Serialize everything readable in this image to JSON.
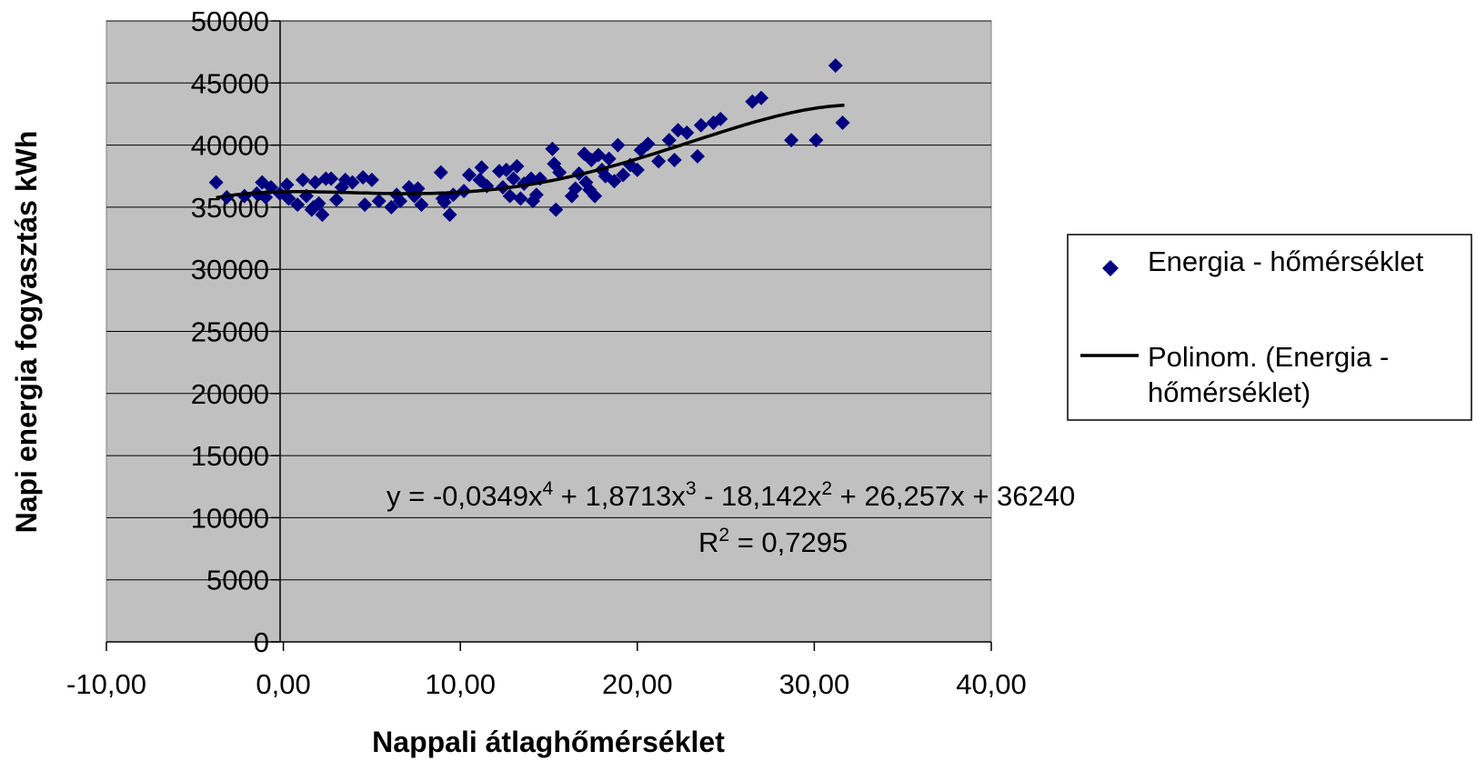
{
  "chart_data": {
    "type": "scatter",
    "xlabel": "Nappali átlaghőmérséklet",
    "ylabel": "Napi energia fogyasztás kWh",
    "xlim": [
      -10,
      40
    ],
    "ylim": [
      0,
      50000
    ],
    "x_ticks": [
      "-10,00",
      "0,00",
      "10,00",
      "20,00",
      "30,00",
      "40,00"
    ],
    "y_ticks": [
      "0",
      "5000",
      "10000",
      "15000",
      "20000",
      "25000",
      "30000",
      "35000",
      "40000",
      "45000",
      "50000"
    ],
    "grid": "horizontal",
    "legend_position": "right",
    "colors": {
      "plot_background": "#c0c0c0",
      "marker": "#000080",
      "trendline": "#000000"
    },
    "trendline": {
      "name": "Polinom. (Energia - hőmérséklet)",
      "equation_prefix": "y = -0,0349x",
      "equation_parts": [
        "4",
        " + 1,8713x",
        "3",
        " - 18,142x",
        "2",
        " + 26,257x + 36240"
      ],
      "r2_prefix": "R",
      "r2_sup": "2",
      "r2_suffix": " = 0,7295",
      "coefficients": [
        36240,
        26.257,
        -18.142,
        1.8713,
        -0.0349
      ],
      "x_range": [
        -3.8,
        31.7
      ]
    },
    "series": [
      {
        "name": "Energia - hőmérséklet",
        "marker": "diamond",
        "points": [
          [
            -3.8,
            37000
          ],
          [
            -3.2,
            35800
          ],
          [
            -2.2,
            35900
          ],
          [
            -1.5,
            36100
          ],
          [
            -1.2,
            37000
          ],
          [
            -1.0,
            35800
          ],
          [
            -0.7,
            36600
          ],
          [
            -0.2,
            36100
          ],
          [
            0.2,
            36800
          ],
          [
            0.3,
            35700
          ],
          [
            0.8,
            35200
          ],
          [
            1.1,
            37200
          ],
          [
            1.3,
            35900
          ],
          [
            1.6,
            34800
          ],
          [
            1.7,
            35000
          ],
          [
            1.8,
            37000
          ],
          [
            2.0,
            35300
          ],
          [
            2.2,
            34400
          ],
          [
            2.4,
            37300
          ],
          [
            2.7,
            37300
          ],
          [
            3.0,
            35600
          ],
          [
            3.3,
            36600
          ],
          [
            3.5,
            37200
          ],
          [
            3.9,
            37000
          ],
          [
            4.5,
            37400
          ],
          [
            4.6,
            35200
          ],
          [
            5.0,
            37200
          ],
          [
            5.4,
            35500
          ],
          [
            6.1,
            35000
          ],
          [
            6.4,
            36000
          ],
          [
            6.6,
            35500
          ],
          [
            7.1,
            36600
          ],
          [
            7.4,
            35900
          ],
          [
            7.6,
            36500
          ],
          [
            7.8,
            35200
          ],
          [
            8.9,
            37800
          ],
          [
            9.0,
            35700
          ],
          [
            9.1,
            35400
          ],
          [
            9.4,
            34400
          ],
          [
            9.6,
            36000
          ],
          [
            10.2,
            36300
          ],
          [
            10.5,
            37600
          ],
          [
            11.1,
            37200
          ],
          [
            11.2,
            38200
          ],
          [
            11.5,
            36700
          ],
          [
            12.2,
            37900
          ],
          [
            12.4,
            36600
          ],
          [
            12.6,
            38000
          ],
          [
            12.8,
            35900
          ],
          [
            13.0,
            37300
          ],
          [
            13.2,
            38300
          ],
          [
            13.4,
            35700
          ],
          [
            13.6,
            36900
          ],
          [
            14.0,
            37300
          ],
          [
            14.1,
            35500
          ],
          [
            14.3,
            36000
          ],
          [
            14.5,
            37300
          ],
          [
            15.2,
            39700
          ],
          [
            15.3,
            38500
          ],
          [
            15.4,
            34800
          ],
          [
            15.6,
            37800
          ],
          [
            16.3,
            35900
          ],
          [
            16.5,
            36500
          ],
          [
            16.7,
            37700
          ],
          [
            17.0,
            39300
          ],
          [
            17.1,
            37000
          ],
          [
            17.3,
            36400
          ],
          [
            17.4,
            38800
          ],
          [
            17.6,
            35900
          ],
          [
            17.8,
            39200
          ],
          [
            18.0,
            38000
          ],
          [
            18.2,
            37500
          ],
          [
            18.4,
            38900
          ],
          [
            18.7,
            37100
          ],
          [
            18.9,
            40000
          ],
          [
            19.2,
            37600
          ],
          [
            19.6,
            38400
          ],
          [
            20.0,
            38000
          ],
          [
            20.2,
            39600
          ],
          [
            20.6,
            40100
          ],
          [
            21.2,
            38700
          ],
          [
            21.8,
            40400
          ],
          [
            22.1,
            38800
          ],
          [
            22.3,
            41200
          ],
          [
            22.8,
            41000
          ],
          [
            23.4,
            39100
          ],
          [
            23.6,
            41600
          ],
          [
            24.3,
            41800
          ],
          [
            24.7,
            42100
          ],
          [
            26.5,
            43500
          ],
          [
            27.0,
            43800
          ],
          [
            28.7,
            40400
          ],
          [
            30.1,
            40400
          ],
          [
            31.2,
            46400
          ],
          [
            31.6,
            41800
          ]
        ]
      }
    ]
  },
  "legend": {
    "scatter_label": "Energia - hőmérséklet",
    "trend_label_line1": "Polinom. (Energia -",
    "trend_label_line2": "hőmérséklet)"
  }
}
